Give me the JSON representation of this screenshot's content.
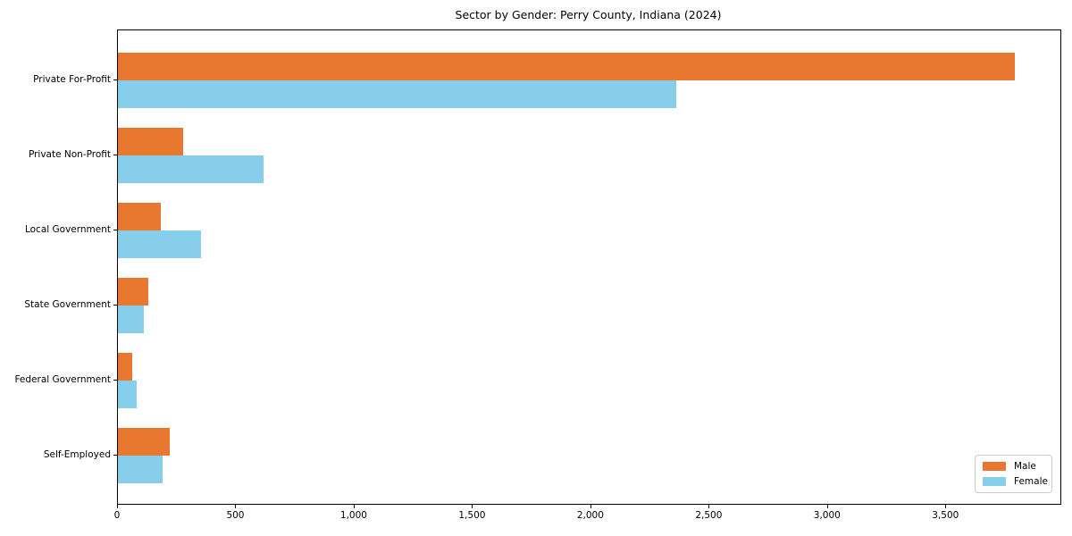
{
  "title": "Sector by Gender: Perry County, Indiana (2024)",
  "chart_data": {
    "type": "bar",
    "orientation": "horizontal",
    "title": "Sector by Gender: Perry County, Indiana (2024)",
    "categories": [
      "Private For-Profit",
      "Private Non-Profit",
      "Local Government",
      "State Government",
      "Federal Government",
      "Self-Employed"
    ],
    "series": [
      {
        "name": "Male",
        "color": "#e8782f",
        "values": [
          3790,
          275,
          180,
          130,
          60,
          220
        ]
      },
      {
        "name": "Female",
        "color": "#87ceeb",
        "values": [
          2360,
          615,
          350,
          110,
          80,
          190
        ]
      }
    ],
    "xlabel": "",
    "ylabel": "",
    "xlim": [
      0,
      3982
    ],
    "xticks": [
      {
        "value": 0,
        "label": "0"
      },
      {
        "value": 500,
        "label": "500"
      },
      {
        "value": 1000,
        "label": "1,000"
      },
      {
        "value": 1500,
        "label": "1,500"
      },
      {
        "value": 2000,
        "label": "2,000"
      },
      {
        "value": 2500,
        "label": "2,500"
      },
      {
        "value": 3000,
        "label": "3,000"
      },
      {
        "value": 3500,
        "label": "3,500"
      }
    ],
    "grid": false,
    "legend_position": "lower right"
  }
}
